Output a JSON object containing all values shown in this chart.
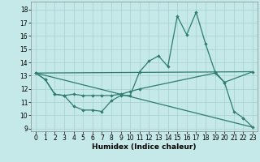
{
  "xlabel": "Humidex (Indice chaleur)",
  "bg_color": "#c5e8e8",
  "line_color": "#2e7d6e",
  "grid_color": "#a8d0d0",
  "xlim": [
    -0.5,
    23.5
  ],
  "ylim": [
    8.8,
    18.6
  ],
  "yticks": [
    9,
    10,
    11,
    12,
    13,
    14,
    15,
    16,
    17,
    18
  ],
  "xticks": [
    0,
    1,
    2,
    3,
    4,
    5,
    6,
    7,
    8,
    9,
    10,
    11,
    12,
    13,
    14,
    15,
    16,
    17,
    18,
    19,
    20,
    21,
    22,
    23
  ],
  "line1_x": [
    0,
    1,
    2,
    3,
    4,
    5,
    6,
    7,
    8,
    9,
    10,
    11,
    12,
    13,
    14,
    15,
    16,
    17,
    18,
    19,
    20,
    21,
    22,
    23
  ],
  "line1_y": [
    13.2,
    12.7,
    11.6,
    11.5,
    10.7,
    10.4,
    10.4,
    10.3,
    11.1,
    11.5,
    11.5,
    13.3,
    14.1,
    14.5,
    13.7,
    17.5,
    16.1,
    17.8,
    15.4,
    13.3,
    12.5,
    10.3,
    9.8,
    9.1
  ],
  "line2_x": [
    0,
    1,
    2,
    3,
    4,
    5,
    6,
    7,
    8,
    9,
    10,
    11,
    19,
    20,
    23
  ],
  "line2_y": [
    13.2,
    12.7,
    11.6,
    11.5,
    11.6,
    11.5,
    11.5,
    11.5,
    11.5,
    11.6,
    11.8,
    12.0,
    13.2,
    12.5,
    13.3
  ],
  "line3_x": [
    0,
    23
  ],
  "line3_y": [
    13.2,
    13.3
  ],
  "line4_x": [
    0,
    23
  ],
  "line4_y": [
    13.2,
    9.1
  ]
}
